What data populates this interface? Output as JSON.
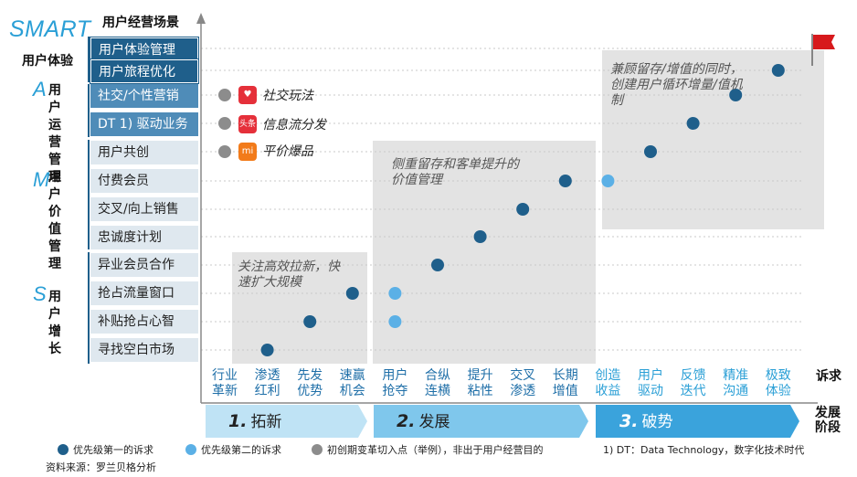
{
  "chart_data": {
    "type": "scatter",
    "title": "SMART",
    "ylabel": "用户经营场景",
    "xlabel": "诉求",
    "stage_axis_label": "发展阶段",
    "y_categories": [
      "寻找空白市场",
      "补贴抢占心智",
      "抢占流量窗口",
      "异业会员合作",
      "忠诚度计划",
      "交叉/向上销售",
      "付费会员",
      "用户共创",
      "DT 1) 驱动业务",
      "社交/个性营销",
      "用户旅程优化",
      "用户体验管理"
    ],
    "x_categories": [
      "行业革新",
      "渗透红利",
      "先发优势",
      "速赢机会",
      "用户抢夺",
      "合纵连横",
      "提升粘性",
      "交叉渗透",
      "长期增值",
      "创造收益",
      "用户驱动",
      "反馈迭代",
      "精准沟通",
      "极致体验"
    ],
    "series": [
      {
        "name": "优先级第一的诉求",
        "color": "#1f5f8b",
        "points": [
          [
            1,
            0
          ],
          [
            2,
            1
          ],
          [
            3,
            2
          ],
          [
            5,
            3
          ],
          [
            6,
            4
          ],
          [
            7,
            5
          ],
          [
            8,
            6
          ],
          [
            10,
            7
          ],
          [
            11,
            8
          ],
          [
            12,
            9
          ],
          [
            13,
            10
          ]
        ]
      },
      {
        "name": "优先级第二的诉求",
        "color": "#5bb0e6",
        "points": [
          [
            4,
            2
          ],
          [
            4,
            1
          ],
          [
            9,
            6
          ]
        ]
      },
      {
        "name": "初创期变革切入点（举例），非出于用户经营目的",
        "color": "#8c8c8c",
        "points": [
          [
            0,
            9
          ],
          [
            0,
            8
          ],
          [
            0,
            7
          ]
        ]
      }
    ],
    "row_groups": [
      {
        "letter": "",
        "label": "用户体验",
        "rows": [
          "用户体验管理",
          "用户旅程优化"
        ]
      },
      {
        "letter": "A",
        "label": "用户运营管理",
        "rows": [
          "社交/个性营销",
          "DT 1) 驱动业务"
        ]
      },
      {
        "letter": "M",
        "label": "用户价值管理",
        "rows": [
          "用户共创",
          "付费会员",
          "交叉/向上销售",
          "忠诚度计划"
        ]
      },
      {
        "letter": "S",
        "label": "用户增长",
        "rows": [
          "异业会员合作",
          "抢占流量窗口",
          "补贴抢占心智",
          "寻找空白市场"
        ]
      }
    ],
    "stages": [
      {
        "number": "1.",
        "name": "拓新"
      },
      {
        "number": "2.",
        "name": "发展"
      },
      {
        "number": "3.",
        "name": "破势"
      }
    ],
    "annotations": [
      "关注高效拉新，快速扩大规模",
      "侧重留存和客单提升的价值管理",
      "兼顾留存/增值的同时，创建用户循环增量/值机制"
    ],
    "examples": [
      {
        "icon": "xiaohongshu-icon",
        "icon_text": "♥",
        "label": "社交玩法",
        "color": "#e5303a"
      },
      {
        "icon": "toutiao-icon",
        "icon_text": "头条",
        "label": "信息流分发",
        "color": "#e5303a"
      },
      {
        "icon": "xiaomi-icon",
        "icon_text": "mi",
        "label": "平价爆品",
        "color": "#f27b1a"
      }
    ],
    "footnote": "1) DT：Data Technology，数字化技术时代",
    "source": "资料来源：罗兰贝格分析"
  },
  "labels": {
    "group_a_line1": "用户",
    "group_a_line2": "运营",
    "group_a_line3": "管理",
    "group_m_line1": "用户",
    "group_m_line2": "价值",
    "group_m_line3": "管理",
    "group_s_line1": "用户",
    "group_s_line2": "增长",
    "stage_axis_line1": "发展",
    "stage_axis_line2": "阶段"
  },
  "colors": {
    "primary": "#1f5f8b",
    "secondary": "#5bb0e6",
    "gray": "#8c8c8c",
    "accent": "#2a9fd6",
    "flag": "#d7191c"
  }
}
